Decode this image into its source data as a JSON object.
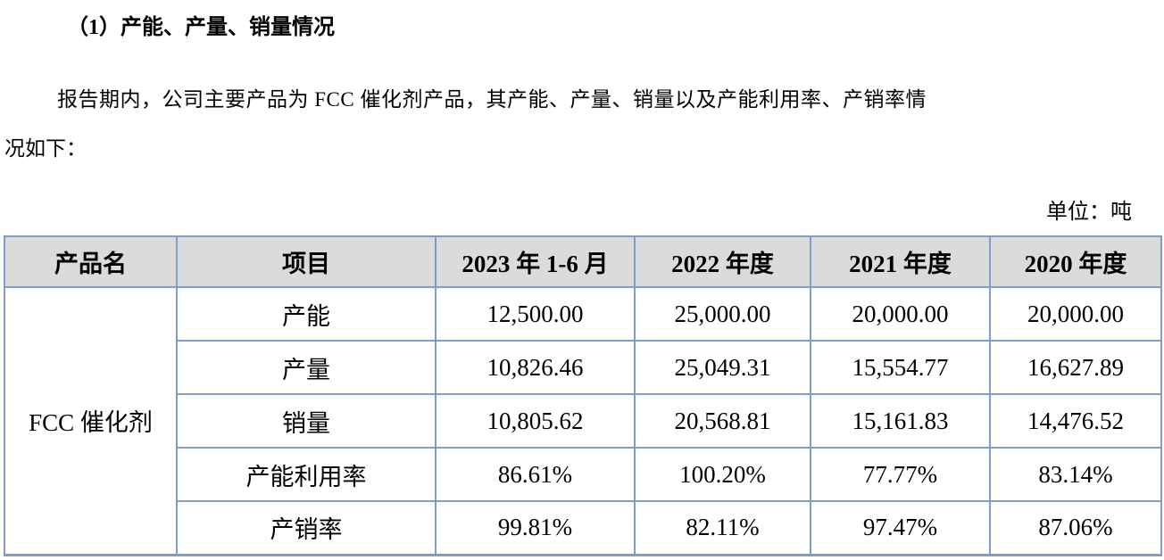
{
  "page": {
    "heading": "（1）产能、产量、销量情况",
    "paragraph_line1": "报告期内，公司主要产品为 FCC 催化剂产品，其产能、产量、销量以及产能利用率、产销率情",
    "paragraph_line2": "况如下：",
    "unit_label": "单位：吨"
  },
  "table": {
    "headers": [
      "产品名",
      "项目",
      "2023 年 1-6 月",
      "2022 年度",
      "2021 年度",
      "2020 年度"
    ],
    "product_name": "FCC 催化剂",
    "rows": [
      {
        "item": "产能",
        "values": [
          "12,500.00",
          "25,000.00",
          "20,000.00",
          "20,000.00"
        ]
      },
      {
        "item": "产量",
        "values": [
          "10,826.46",
          "25,049.31",
          "15,554.77",
          "16,627.89"
        ]
      },
      {
        "item": "销量",
        "values": [
          "10,805.62",
          "20,568.81",
          "15,161.83",
          "14,476.52"
        ]
      },
      {
        "item": "产能利用率",
        "values": [
          "86.61%",
          "100.20%",
          "77.77%",
          "83.14%"
        ]
      },
      {
        "item": "产销率",
        "values": [
          "99.81%",
          "82.11%",
          "97.47%",
          "87.06%"
        ]
      }
    ]
  },
  "colors": {
    "header_bg": "#dbdbdb",
    "border": "#7e9dcb"
  }
}
